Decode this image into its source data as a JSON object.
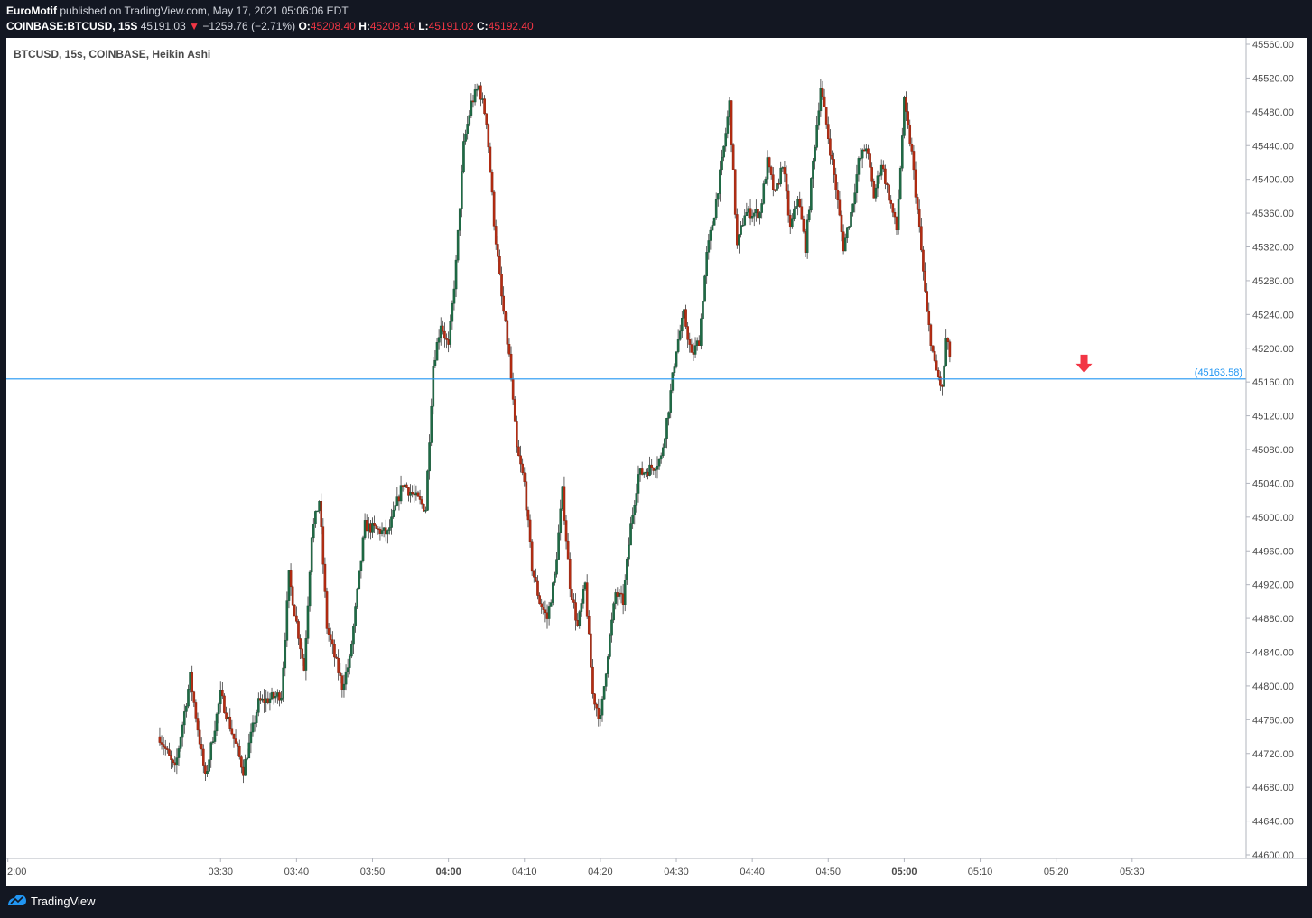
{
  "header": {
    "author": "EuroMotif",
    "published_text": "published on TradingView.com, May 17, 2021 05:06:06 EDT",
    "symbol": "COINBASE:BTCUSD, 15S",
    "last_price": "45191.03",
    "change_arrow": "▼",
    "change": "−1259.76 (−2.71%)",
    "o_label": "O:",
    "o_value": "45208.40",
    "h_label": "H:",
    "h_value": "45208.40",
    "l_label": "L:",
    "l_value": "45191.02",
    "c_label": "C:",
    "c_value": "45192.40"
  },
  "footer": {
    "brand": "TradingView",
    "logo_icon": "tradingview-logo-icon"
  },
  "colors": {
    "up": "#26a69a",
    "up_body": "#1e6b45",
    "down": "#a3230f",
    "down_body": "#b52c12",
    "line": "#2196f3",
    "arrow": "#f23645",
    "axis_text": "#4a4a4a",
    "background": "#ffffff",
    "header_bg": "#131722"
  },
  "chart_data": {
    "type": "candlestick",
    "title": "BTCUSD, 15s, COINBASE, Heikin Ashi",
    "xlabel": "",
    "ylabel": "",
    "y_ticks": [
      "44600.00",
      "44640.00",
      "44680.00",
      "44720.00",
      "44760.00",
      "44800.00",
      "44840.00",
      "44880.00",
      "44920.00",
      "44960.00",
      "45000.00",
      "45040.00",
      "45080.00",
      "45120.00",
      "45160.00",
      "45200.00",
      "45240.00",
      "45280.00",
      "45320.00",
      "45360.00",
      "45400.00",
      "45440.00",
      "45480.00",
      "45520.00",
      "45560.00"
    ],
    "ylim": [
      44600,
      45560
    ],
    "x_ticks": [
      "2:00",
      "03:30",
      "03:40",
      "03:50",
      "04:00",
      "04:10",
      "04:20",
      "04:30",
      "04:40",
      "04:50",
      "05:00",
      "05:10",
      "05:20",
      "05:30"
    ],
    "x_ticks_bold": [
      "04:00",
      "05:00"
    ],
    "x_tick_minutes": [
      -28,
      0,
      10,
      20,
      30,
      40,
      50,
      60,
      70,
      80,
      90,
      100,
      110,
      120
    ],
    "x_range_minutes": [
      -28.2,
      135
    ],
    "x_origin": "03:30",
    "horizontal_line": {
      "value": 45163.58,
      "label": "(45163.58)"
    },
    "down_arrow_marker": {
      "time": "05:23:40",
      "icon": "down-arrow-icon"
    },
    "price_path_anchors": [
      [
        "03:22",
        44740
      ],
      [
        "03:24",
        44700
      ],
      [
        "03:26",
        44810
      ],
      [
        "03:28",
        44690
      ],
      [
        "03:30",
        44790
      ],
      [
        "03:33",
        44700
      ],
      [
        "03:35",
        44780
      ],
      [
        "03:38",
        44790
      ],
      [
        "03:39",
        44930
      ],
      [
        "03:41",
        44820
      ],
      [
        "03:42",
        44980
      ],
      [
        "03:43",
        45020
      ],
      [
        "03:44",
        44870
      ],
      [
        "03:46",
        44800
      ],
      [
        "03:47",
        44830
      ],
      [
        "03:49",
        44990
      ],
      [
        "03:52",
        44980
      ],
      [
        "03:54",
        45040
      ],
      [
        "03:57",
        45010
      ],
      [
        "03:58",
        45180
      ],
      [
        "03:59",
        45230
      ],
      [
        "04:00",
        45200
      ],
      [
        "04:01",
        45300
      ],
      [
        "04:02",
        45440
      ],
      [
        "04:03",
        45490
      ],
      [
        "04:04",
        45510
      ],
      [
        "04:05",
        45470
      ],
      [
        "04:06",
        45350
      ],
      [
        "04:07",
        45260
      ],
      [
        "04:08",
        45190
      ],
      [
        "04:09",
        45080
      ],
      [
        "04:10",
        45040
      ],
      [
        "04:11",
        44940
      ],
      [
        "04:12",
        44900
      ],
      [
        "04:13",
        44880
      ],
      [
        "04:14",
        44930
      ],
      [
        "04:15",
        45030
      ],
      [
        "04:16",
        44920
      ],
      [
        "04:17",
        44870
      ],
      [
        "04:18",
        44920
      ],
      [
        "04:19",
        44790
      ],
      [
        "04:20",
        44760
      ],
      [
        "04:21",
        44840
      ],
      [
        "04:22",
        44910
      ],
      [
        "04:23",
        44900
      ],
      [
        "04:24",
        44990
      ],
      [
        "04:25",
        45050
      ],
      [
        "04:27",
        45060
      ],
      [
        "04:28",
        45070
      ],
      [
        "04:29",
        45130
      ],
      [
        "04:30",
        45200
      ],
      [
        "04:31",
        45240
      ],
      [
        "04:32",
        45190
      ],
      [
        "04:33",
        45210
      ],
      [
        "04:34",
        45310
      ],
      [
        "04:35",
        45360
      ],
      [
        "04:36",
        45420
      ],
      [
        "04:37",
        45490
      ],
      [
        "04:38",
        45320
      ],
      [
        "04:39",
        45360
      ],
      [
        "04:41",
        45360
      ],
      [
        "04:42",
        45420
      ],
      [
        "04:43",
        45380
      ],
      [
        "04:44",
        45420
      ],
      [
        "04:45",
        45340
      ],
      [
        "04:46",
        45380
      ],
      [
        "04:47",
        45320
      ],
      [
        "04:48",
        45420
      ],
      [
        "04:49",
        45510
      ],
      [
        "04:50",
        45450
      ],
      [
        "04:51",
        45390
      ],
      [
        "04:52",
        45320
      ],
      [
        "04:53",
        45360
      ],
      [
        "04:54",
        45420
      ],
      [
        "04:55",
        45440
      ],
      [
        "04:56",
        45380
      ],
      [
        "04:57",
        45420
      ],
      [
        "04:58",
        45380
      ],
      [
        "04:59",
        45340
      ],
      [
        "05:00",
        45490
      ],
      [
        "05:01",
        45430
      ],
      [
        "05:02",
        45340
      ],
      [
        "05:03",
        45240
      ],
      [
        "05:04",
        45180
      ],
      [
        "05:05",
        45150
      ],
      [
        "05:05:30",
        45210
      ],
      [
        "05:06",
        45192
      ]
    ]
  }
}
